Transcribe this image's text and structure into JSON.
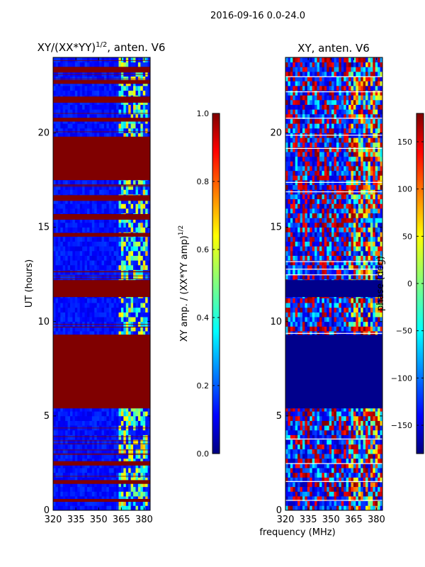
{
  "figure_title": "2016-09-16 0.0-24.0",
  "shared_xlabel": "frequency (MHz)",
  "colors": {
    "saturated": "#800000",
    "background_low": "#0000c8",
    "line_white": "#ffffff"
  },
  "chart_data": [
    {
      "type": "heatmap",
      "title_main": "XY/(XX*YY)",
      "title_sup": "1/2",
      "title_rest": ", anten. V6",
      "xlabel": "frequency (MHz)",
      "ylabel": "UT (hours)",
      "xlim": [
        320,
        384
      ],
      "ylim": [
        0,
        24
      ],
      "xticks": [
        320,
        335,
        350,
        365,
        380
      ],
      "yticks": [
        0,
        5,
        10,
        15,
        20
      ],
      "colorbar": {
        "label_main": "XY amp. / (XX*YY amp)",
        "label_sup": "1/2",
        "range": [
          0.0,
          1.0
        ],
        "ticks": [
          "0.0",
          "0.2",
          "0.4",
          "0.6",
          "0.8",
          "1.0"
        ],
        "tick_values": [
          0.0,
          0.2,
          0.4,
          0.6,
          0.8,
          1.0
        ]
      },
      "saturated_bands_ut_hours": [
        [
          5.4,
          9.3
        ],
        [
          11.3,
          12.2
        ],
        [
          0.45,
          0.6
        ],
        [
          1.4,
          1.6
        ],
        [
          2.4,
          2.6
        ],
        [
          14.5,
          14.7
        ],
        [
          15.4,
          15.7
        ],
        [
          16.4,
          16.7
        ],
        [
          17.5,
          19.8
        ],
        [
          20.6,
          20.8
        ],
        [
          21.6,
          21.9
        ],
        [
          22.6,
          22.8
        ],
        [
          23.2,
          23.5
        ]
      ],
      "high_value_region_mhz": [
        362,
        382
      ]
    },
    {
      "type": "heatmap",
      "title": "XY, anten. V6",
      "xlabel": "frequency (MHz)",
      "ylabel": "",
      "xlim": [
        320,
        384
      ],
      "ylim": [
        0,
        24
      ],
      "xticks": [
        320,
        335,
        350,
        365,
        380
      ],
      "yticks": [
        0,
        5,
        10,
        15,
        20
      ],
      "colorbar": {
        "label": "phase (deg)",
        "range": [
          -180,
          180
        ],
        "ticks": [
          "150",
          "100",
          "50",
          "0",
          "−50",
          "−100",
          "−150"
        ],
        "tick_values": [
          150,
          100,
          50,
          0,
          -50,
          -100,
          -150
        ]
      },
      "flagged_bands_ut_hours": [
        [
          5.4,
          9.3
        ],
        [
          11.3,
          12.2
        ]
      ],
      "white_lines_ut_hours": [
        0.55,
        1.55,
        2.5,
        3.8,
        9.4,
        12.5,
        12.8,
        13.2,
        16.9,
        17.4,
        19.2,
        19.9,
        20.8,
        22.2,
        23.0
      ]
    }
  ]
}
